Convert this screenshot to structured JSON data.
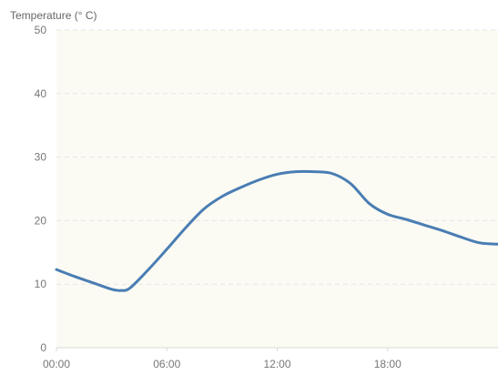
{
  "chart_data": {
    "type": "line",
    "title": "",
    "ylabel": "Temperature (° C)",
    "xlabel": "",
    "ylim": [
      0,
      50
    ],
    "xlim": [
      "00:00",
      "24:00"
    ],
    "x_ticks": [
      "00:00",
      "06:00",
      "12:00",
      "18:00"
    ],
    "y_ticks": [
      "0",
      "10",
      "20",
      "30",
      "40",
      "50"
    ],
    "grid": true,
    "legend": "none",
    "series": [
      {
        "color": "#4a7db3",
        "x": [
          "00:00",
          "01:00",
          "02:00",
          "03:00",
          "03:30",
          "04:00",
          "05:00",
          "06:00",
          "07:00",
          "08:00",
          "09:00",
          "10:00",
          "11:00",
          "12:00",
          "13:00",
          "14:00",
          "15:00",
          "16:00",
          "17:00",
          "18:00",
          "19:00",
          "20:00",
          "21:00",
          "22:00",
          "23:00",
          "24:00"
        ],
        "values": [
          12.3,
          11.2,
          10.2,
          9.2,
          9.0,
          9.4,
          12.3,
          15.5,
          18.8,
          21.8,
          23.8,
          25.2,
          26.4,
          27.3,
          27.7,
          27.7,
          27.4,
          25.8,
          22.7,
          21.0,
          20.2,
          19.3,
          18.4,
          17.4,
          16.5,
          16.3
        ]
      }
    ]
  },
  "colors": {
    "plot_background": "#fbfbf4",
    "grid": "#e6e6e6",
    "series": "#4a7db3"
  }
}
